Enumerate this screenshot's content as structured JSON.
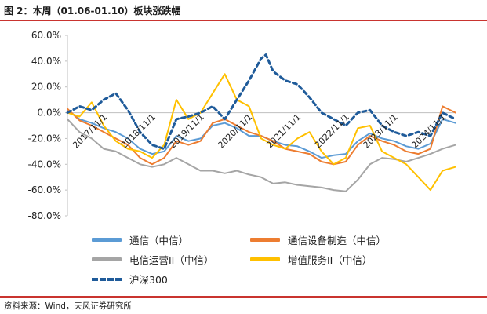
{
  "header": {
    "title": "图 2：本周（01.06-01.10）板块涨跌幅"
  },
  "footer": {
    "source": "资料来源：Wind，天风证券研究所"
  },
  "chart_data": {
    "type": "line",
    "title": "图 2：本周（01.06-01.10）板块涨跌幅",
    "xlabel": "",
    "ylabel": "",
    "ylim": [
      -80,
      60
    ],
    "yticks": [
      "60.0%",
      "40.0%",
      "20.0%",
      "0.0%",
      "-20.0%",
      "-40.0%",
      "-60.0%",
      "-80.0%"
    ],
    "ytick_values": [
      60,
      40,
      20,
      0,
      -20,
      -40,
      -60,
      -80
    ],
    "x_range": [
      2017.0,
      2025.02
    ],
    "xticks": [
      "2017/11/1",
      "2018/11/1",
      "2019/11/1",
      "2020/11/1",
      "2021/11/1",
      "2022/11/1",
      "2023/11/1",
      "2024/11/1"
    ],
    "xtick_values": [
      2017.83,
      2018.83,
      2019.83,
      2020.83,
      2021.83,
      2022.83,
      2023.83,
      2024.83
    ],
    "legend_position": "bottom",
    "series": [
      {
        "name": "通信（中信）",
        "color": "#5b9bd5",
        "style": "solid",
        "x": [
          2017.0,
          2017.25,
          2017.5,
          2017.75,
          2018.0,
          2018.25,
          2018.5,
          2018.75,
          2019.0,
          2019.25,
          2019.5,
          2019.75,
          2020.0,
          2020.25,
          2020.5,
          2020.75,
          2021.0,
          2021.25,
          2021.5,
          2021.75,
          2022.0,
          2022.25,
          2022.5,
          2022.75,
          2023.0,
          2023.25,
          2023.5,
          2023.75,
          2024.0,
          2024.25,
          2024.5,
          2024.75,
          2025.02
        ],
        "values": [
          2,
          -5,
          -8,
          -12,
          -15,
          -20,
          -28,
          -32,
          -30,
          -18,
          -22,
          -20,
          -10,
          -8,
          -12,
          -18,
          -18,
          -22,
          -25,
          -26,
          -30,
          -35,
          -33,
          -32,
          -22,
          -16,
          -20,
          -22,
          -26,
          -28,
          -24,
          -5,
          -8
        ]
      },
      {
        "name": "通信设备制造（中信）",
        "color": "#ed7d31",
        "style": "solid",
        "x": [
          2017.0,
          2017.25,
          2017.5,
          2017.75,
          2018.0,
          2018.25,
          2018.5,
          2018.75,
          2019.0,
          2019.25,
          2019.5,
          2019.75,
          2020.0,
          2020.25,
          2020.5,
          2020.75,
          2021.0,
          2021.25,
          2021.5,
          2021.75,
          2022.0,
          2022.25,
          2022.5,
          2022.75,
          2023.0,
          2023.25,
          2023.5,
          2023.75,
          2024.0,
          2024.25,
          2024.5,
          2024.75,
          2025.02
        ],
        "values": [
          3,
          -6,
          -10,
          -15,
          -20,
          -25,
          -35,
          -40,
          -35,
          -22,
          -25,
          -22,
          -8,
          -5,
          -10,
          -15,
          -18,
          -22,
          -28,
          -30,
          -32,
          -38,
          -40,
          -38,
          -25,
          -18,
          -22,
          -25,
          -30,
          -32,
          -28,
          5,
          0
        ]
      },
      {
        "name": "电信运营II（中信）",
        "color": "#a5a5a5",
        "style": "solid",
        "x": [
          2017.0,
          2017.25,
          2017.5,
          2017.75,
          2018.0,
          2018.25,
          2018.5,
          2018.75,
          2019.0,
          2019.25,
          2019.5,
          2019.75,
          2020.0,
          2020.25,
          2020.5,
          2020.75,
          2021.0,
          2021.25,
          2021.5,
          2021.75,
          2022.0,
          2022.25,
          2022.5,
          2022.75,
          2023.0,
          2023.25,
          2023.5,
          2023.75,
          2024.0,
          2024.25,
          2024.5,
          2024.75,
          2025.02
        ],
        "values": [
          -5,
          -15,
          -20,
          -28,
          -30,
          -35,
          -40,
          -42,
          -40,
          -35,
          -40,
          -45,
          -45,
          -47,
          -45,
          -48,
          -50,
          -55,
          -54,
          -56,
          -57,
          -58,
          -60,
          -61,
          -52,
          -40,
          -35,
          -36,
          -38,
          -35,
          -32,
          -28,
          -25
        ]
      },
      {
        "name": "增值服务II（中信）",
        "color": "#ffc000",
        "style": "solid",
        "x": [
          2017.0,
          2017.25,
          2017.5,
          2017.75,
          2018.0,
          2018.25,
          2018.5,
          2018.75,
          2019.0,
          2019.25,
          2019.5,
          2019.75,
          2020.0,
          2020.25,
          2020.5,
          2020.75,
          2021.0,
          2021.25,
          2021.5,
          2021.75,
          2022.0,
          2022.25,
          2022.5,
          2022.75,
          2023.0,
          2023.25,
          2023.5,
          2023.75,
          2024.0,
          2024.25,
          2024.5,
          2024.75,
          2025.02
        ],
        "values": [
          0,
          -3,
          8,
          -10,
          -22,
          -28,
          -30,
          -35,
          -25,
          10,
          -5,
          0,
          15,
          30,
          10,
          5,
          -20,
          -25,
          -28,
          -20,
          -15,
          -30,
          -40,
          -35,
          -12,
          -10,
          -30,
          -35,
          -40,
          -50,
          -60,
          -45,
          -42
        ]
      },
      {
        "name": "沪深300",
        "color": "#1f5b9a",
        "style": "dashed",
        "x": [
          2017.0,
          2017.25,
          2017.5,
          2017.75,
          2018.0,
          2018.25,
          2018.5,
          2018.75,
          2019.0,
          2019.25,
          2019.5,
          2019.75,
          2020.0,
          2020.25,
          2020.5,
          2020.75,
          2021.0,
          2021.1,
          2021.25,
          2021.5,
          2021.75,
          2022.0,
          2022.25,
          2022.5,
          2022.75,
          2023.0,
          2023.25,
          2023.5,
          2023.75,
          2024.0,
          2024.25,
          2024.5,
          2024.75,
          2025.02
        ],
        "values": [
          0,
          5,
          2,
          10,
          15,
          2,
          -15,
          -25,
          -28,
          -5,
          -3,
          0,
          5,
          -5,
          10,
          25,
          42,
          45,
          32,
          25,
          22,
          12,
          0,
          -5,
          -10,
          0,
          2,
          -10,
          -15,
          -18,
          -15,
          -18,
          0,
          -5
        ]
      }
    ]
  }
}
